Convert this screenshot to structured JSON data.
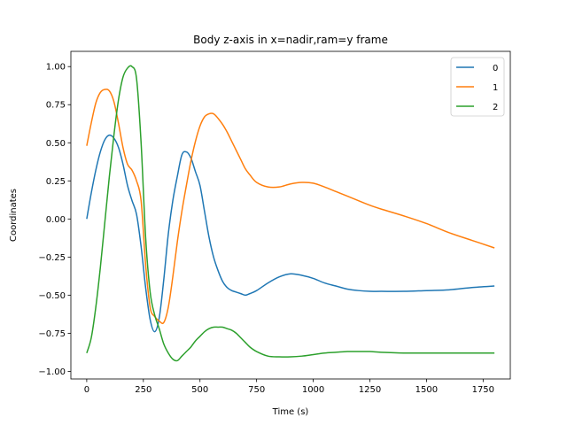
{
  "chart_data": {
    "type": "line",
    "title": "Body z-axis in x=nadir,ram=y frame",
    "xlabel": "Time (s)",
    "ylabel": "Coordinates",
    "xlim": [
      -70,
      1870
    ],
    "ylim": [
      -1.05,
      1.1
    ],
    "xticks": [
      0,
      250,
      500,
      750,
      1000,
      1250,
      1500,
      1750
    ],
    "yticks": [
      -1.0,
      -0.75,
      -0.5,
      -0.25,
      0.0,
      0.25,
      0.5,
      0.75,
      1.0
    ],
    "xtick_labels": [
      "0",
      "250",
      "500",
      "750",
      "1000",
      "1250",
      "1500",
      "1750"
    ],
    "ytick_labels": [
      "−1.00",
      "−0.75",
      "−0.50",
      "−0.25",
      "0.00",
      "0.25",
      "0.50",
      "0.75",
      "1.00"
    ],
    "grid": false,
    "legend_position": "top-right",
    "series": [
      {
        "name": "0",
        "color": "#1f77b4",
        "x": [
          0,
          20,
          40,
          60,
          80,
          100,
          120,
          140,
          160,
          180,
          200,
          220,
          240,
          260,
          280,
          300,
          320,
          340,
          360,
          380,
          400,
          420,
          440,
          460,
          480,
          500,
          520,
          540,
          560,
          580,
          600,
          620,
          640,
          660,
          680,
          700,
          720,
          750,
          800,
          850,
          900,
          950,
          1000,
          1050,
          1100,
          1150,
          1200,
          1250,
          1300,
          1400,
          1500,
          1600,
          1700,
          1800
        ],
        "y": [
          0.0,
          0.17,
          0.32,
          0.44,
          0.52,
          0.55,
          0.53,
          0.47,
          0.36,
          0.22,
          0.12,
          0.03,
          -0.18,
          -0.45,
          -0.66,
          -0.74,
          -0.65,
          -0.4,
          -0.1,
          0.12,
          0.28,
          0.42,
          0.44,
          0.4,
          0.31,
          0.22,
          0.05,
          -0.12,
          -0.25,
          -0.34,
          -0.41,
          -0.45,
          -0.47,
          -0.48,
          -0.49,
          -0.5,
          -0.49,
          -0.47,
          -0.42,
          -0.38,
          -0.36,
          -0.37,
          -0.39,
          -0.42,
          -0.44,
          -0.46,
          -0.47,
          -0.475,
          -0.475,
          -0.475,
          -0.47,
          -0.465,
          -0.45,
          -0.44
        ]
      },
      {
        "name": "1",
        "color": "#ff7f0e",
        "x": [
          0,
          20,
          40,
          60,
          80,
          100,
          120,
          140,
          160,
          180,
          200,
          220,
          240,
          260,
          280,
          300,
          320,
          340,
          360,
          380,
          400,
          420,
          440,
          460,
          480,
          500,
          520,
          540,
          560,
          580,
          600,
          620,
          640,
          660,
          680,
          700,
          720,
          750,
          800,
          850,
          900,
          950,
          1000,
          1050,
          1100,
          1150,
          1200,
          1250,
          1300,
          1400,
          1500,
          1600,
          1700,
          1800
        ],
        "y": [
          0.48,
          0.63,
          0.76,
          0.83,
          0.85,
          0.84,
          0.77,
          0.63,
          0.47,
          0.36,
          0.32,
          0.25,
          0.12,
          -0.3,
          -0.58,
          -0.64,
          -0.67,
          -0.68,
          -0.58,
          -0.38,
          -0.15,
          0.05,
          0.22,
          0.38,
          0.51,
          0.61,
          0.67,
          0.69,
          0.69,
          0.66,
          0.62,
          0.57,
          0.51,
          0.45,
          0.39,
          0.33,
          0.29,
          0.24,
          0.21,
          0.21,
          0.23,
          0.24,
          0.235,
          0.21,
          0.18,
          0.15,
          0.12,
          0.09,
          0.065,
          0.02,
          -0.03,
          -0.09,
          -0.14,
          -0.19
        ]
      },
      {
        "name": "2",
        "color": "#2ca02c",
        "x": [
          0,
          20,
          40,
          60,
          80,
          100,
          120,
          140,
          160,
          180,
          200,
          220,
          240,
          260,
          280,
          300,
          320,
          340,
          360,
          380,
          400,
          420,
          440,
          460,
          480,
          500,
          520,
          540,
          560,
          580,
          600,
          620,
          640,
          660,
          680,
          700,
          720,
          750,
          800,
          850,
          900,
          950,
          1000,
          1050,
          1100,
          1150,
          1200,
          1250,
          1300,
          1400,
          1500,
          1600,
          1700,
          1800
        ],
        "y": [
          -0.88,
          -0.78,
          -0.58,
          -0.32,
          -0.02,
          0.28,
          0.55,
          0.78,
          0.93,
          0.99,
          1.0,
          0.92,
          0.5,
          -0.12,
          -0.48,
          -0.63,
          -0.72,
          -0.82,
          -0.88,
          -0.92,
          -0.93,
          -0.9,
          -0.87,
          -0.84,
          -0.8,
          -0.77,
          -0.74,
          -0.72,
          -0.71,
          -0.71,
          -0.71,
          -0.72,
          -0.73,
          -0.75,
          -0.78,
          -0.81,
          -0.84,
          -0.87,
          -0.9,
          -0.905,
          -0.905,
          -0.9,
          -0.89,
          -0.88,
          -0.875,
          -0.87,
          -0.87,
          -0.87,
          -0.875,
          -0.88,
          -0.88,
          -0.88,
          -0.88,
          -0.88
        ]
      }
    ]
  }
}
